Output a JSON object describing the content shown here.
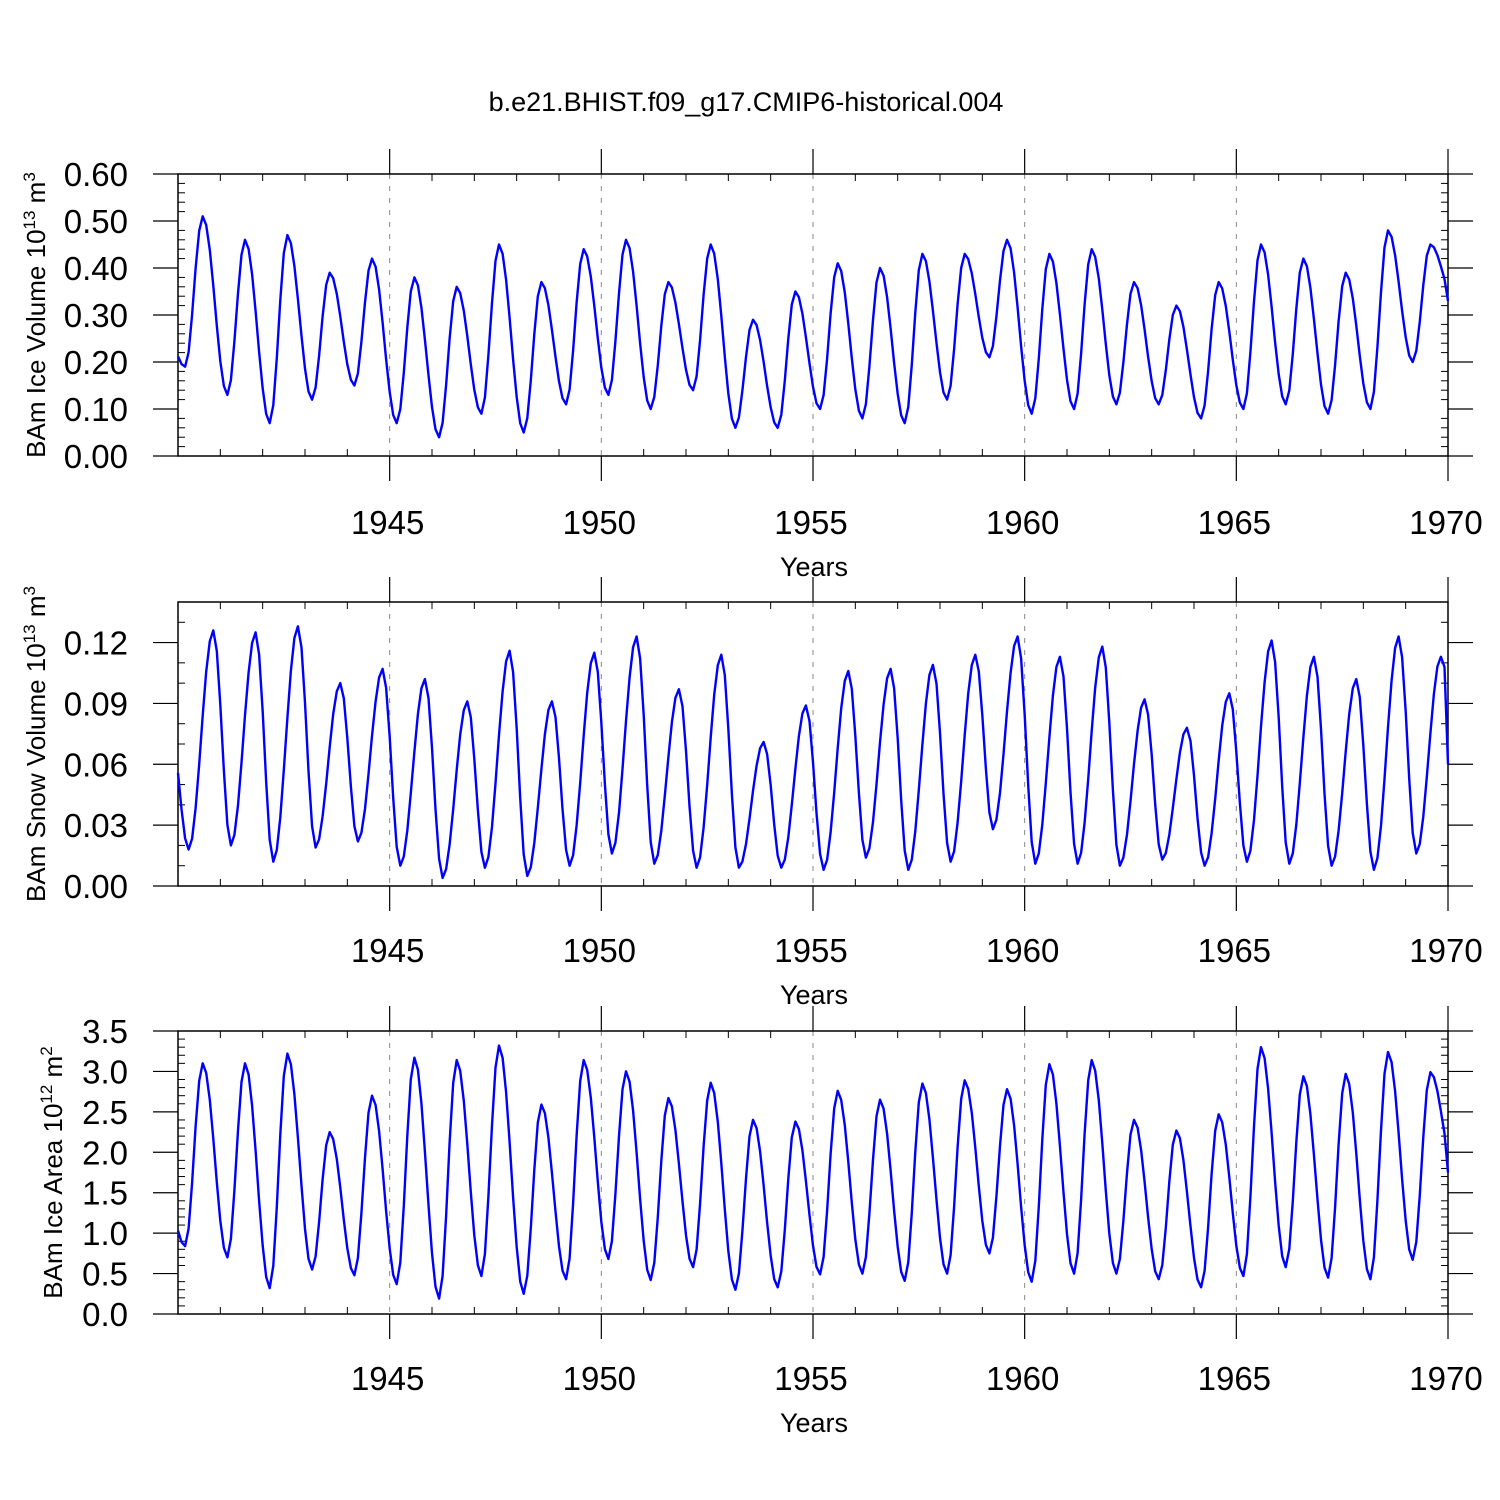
{
  "title": "b.e21.BHIST.f09_g17.CMIP6-historical.004",
  "line_color": "#0000ff",
  "chart_data": [
    {
      "type": "line",
      "ylabel": "BAm Ice Volume 10",
      "ylabel_sup": "13",
      "ylabel_unit": " m",
      "ylabel_unit_sup": "3",
      "xlabel": "Years",
      "xlim": [
        1940.0,
        1970.0
      ],
      "ylim": [
        0.0,
        0.6
      ],
      "x_ticks": [
        1945,
        1950,
        1955,
        1960,
        1965,
        1970
      ],
      "x_tick_labels": [
        "1945",
        "1950",
        "1955",
        "1960",
        "1965",
        "1970"
      ],
      "y_ticks": [
        0.0,
        0.1,
        0.2,
        0.3,
        0.4,
        0.5,
        0.6
      ],
      "y_tick_labels": [
        "0.00",
        "0.10",
        "0.20",
        "0.30",
        "0.40",
        "0.50",
        "0.60"
      ],
      "y_minor_step": 0.02,
      "x_minor_step": 1,
      "cycle": {
        "min": 0.07,
        "max": 0.5,
        "min_month": 2,
        "max_month": 7
      },
      "annual_max": [
        0.51,
        0.46,
        0.47,
        0.39,
        0.42,
        0.38,
        0.36,
        0.45,
        0.37,
        0.44,
        0.46,
        0.37,
        0.45,
        0.29,
        0.35,
        0.41,
        0.4,
        0.43,
        0.43,
        0.46,
        0.43,
        0.44,
        0.37,
        0.32,
        0.37,
        0.45,
        0.42,
        0.39,
        0.48,
        0.45
      ],
      "annual_min": [
        0.19,
        0.13,
        0.07,
        0.12,
        0.15,
        0.07,
        0.04,
        0.09,
        0.05,
        0.11,
        0.13,
        0.1,
        0.14,
        0.06,
        0.06,
        0.1,
        0.08,
        0.07,
        0.12,
        0.21,
        0.09,
        0.1,
        0.11,
        0.11,
        0.08,
        0.1,
        0.11,
        0.09,
        0.1,
        0.2
      ],
      "end_value": 0.33
    },
    {
      "type": "line",
      "ylabel": "BAm Snow Volume 10",
      "ylabel_sup": "13",
      "ylabel_unit": " m",
      "ylabel_unit_sup": "3",
      "xlabel": "Years",
      "xlim": [
        1940.0,
        1970.0
      ],
      "ylim": [
        0.0,
        0.14
      ],
      "x_ticks": [
        1945,
        1950,
        1955,
        1960,
        1965,
        1970
      ],
      "x_tick_labels": [
        "1945",
        "1950",
        "1955",
        "1960",
        "1965",
        "1970"
      ],
      "y_ticks": [
        0.0,
        0.03,
        0.06,
        0.09,
        0.12
      ],
      "y_tick_labels": [
        "0.00",
        "0.03",
        "0.06",
        "0.09",
        "0.12"
      ],
      "y_minor_step": 0.01,
      "x_minor_step": 1,
      "cycle": {
        "min": 0.012,
        "max": 0.12,
        "min_month": 3,
        "max_month": 10
      },
      "annual_max": [
        0.126,
        0.125,
        0.128,
        0.1,
        0.107,
        0.102,
        0.091,
        0.116,
        0.091,
        0.115,
        0.123,
        0.097,
        0.114,
        0.071,
        0.089,
        0.106,
        0.107,
        0.109,
        0.114,
        0.123,
        0.113,
        0.118,
        0.092,
        0.078,
        0.095,
        0.121,
        0.113,
        0.102,
        0.123,
        0.113
      ],
      "annual_min": [
        0.018,
        0.02,
        0.012,
        0.019,
        0.022,
        0.01,
        0.004,
        0.009,
        0.005,
        0.01,
        0.016,
        0.011,
        0.009,
        0.009,
        0.009,
        0.008,
        0.014,
        0.008,
        0.012,
        0.028,
        0.011,
        0.011,
        0.01,
        0.013,
        0.01,
        0.012,
        0.011,
        0.01,
        0.008,
        0.016
      ],
      "end_value": 0.06
    },
    {
      "type": "line",
      "ylabel": "BAm Ice Area 10",
      "ylabel_sup": "12",
      "ylabel_unit": " m",
      "ylabel_unit_sup": "2",
      "xlabel": "Years",
      "xlim": [
        1940.0,
        1970.0
      ],
      "ylim": [
        0.0,
        3.5
      ],
      "x_ticks": [
        1945,
        1950,
        1955,
        1960,
        1965,
        1970
      ],
      "x_tick_labels": [
        "1945",
        "1950",
        "1955",
        "1960",
        "1965",
        "1970"
      ],
      "y_ticks": [
        0.0,
        0.5,
        1.0,
        1.5,
        2.0,
        2.5,
        3.0,
        3.5
      ],
      "y_tick_labels": [
        "0.0",
        "0.5",
        "1.0",
        "1.5",
        "2.0",
        "2.5",
        "3.0",
        "3.5"
      ],
      "y_minor_step": 0.1,
      "x_minor_step": 1,
      "cycle": {
        "min": 0.4,
        "max": 3.0,
        "min_month": 2,
        "max_month": 7
      },
      "annual_max": [
        3.1,
        3.1,
        3.22,
        2.25,
        2.7,
        3.17,
        3.14,
        3.32,
        2.59,
        3.14,
        3.0,
        2.67,
        2.86,
        2.4,
        2.38,
        2.76,
        2.65,
        2.85,
        2.89,
        2.78,
        3.09,
        3.14,
        2.4,
        2.27,
        2.47,
        3.3,
        2.94,
        2.97,
        3.24,
        2.99
      ],
      "annual_min": [
        0.84,
        0.7,
        0.32,
        0.55,
        0.48,
        0.37,
        0.19,
        0.47,
        0.25,
        0.43,
        0.68,
        0.42,
        0.58,
        0.3,
        0.33,
        0.49,
        0.5,
        0.41,
        0.5,
        0.75,
        0.4,
        0.5,
        0.5,
        0.43,
        0.33,
        0.47,
        0.58,
        0.45,
        0.43,
        0.67
      ],
      "end_value": 1.75
    }
  ]
}
